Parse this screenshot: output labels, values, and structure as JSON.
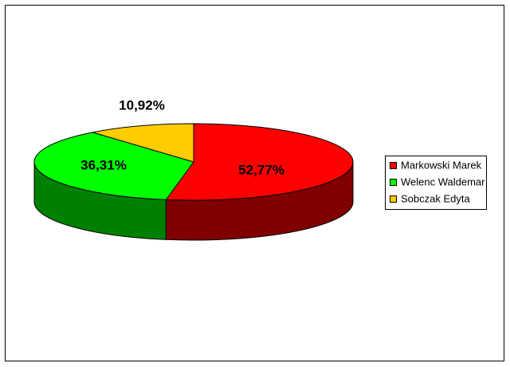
{
  "chart_data": {
    "type": "pie",
    "categories": [
      "Markowski Marek",
      "Welenc Waldemar",
      "Sobczak Edyta"
    ],
    "values": [
      52.77,
      36.31,
      10.92
    ],
    "value_labels": [
      "52,77%",
      "36,31%",
      "10,92%"
    ],
    "colors": [
      "#ff0000",
      "#00ff00",
      "#ffcc00"
    ]
  }
}
